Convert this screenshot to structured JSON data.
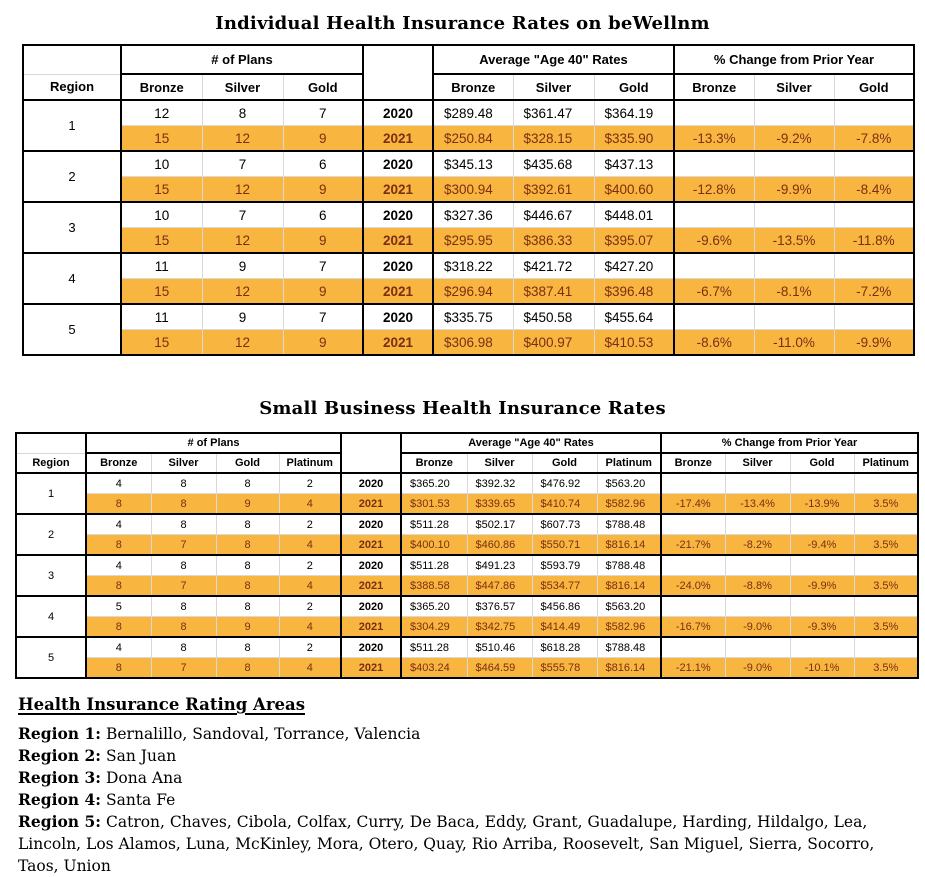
{
  "colors": {
    "highlight_bg": "#F8B640",
    "highlight_text": "#7A2E12"
  },
  "tables": [
    {
      "id": "individual-rates-table",
      "title": "Individual Health Insurance Rates on beWellnm",
      "region_header": "Region",
      "group_headers": [
        "# of Plans",
        "Average \"Age 40\" Rates",
        "% Change from Prior Year"
      ],
      "plan_columns": [
        "Bronze",
        "Silver",
        "Gold"
      ],
      "regions": [
        {
          "region": "1",
          "rows": [
            {
              "year": "2020",
              "plans": [
                "12",
                "8",
                "7"
              ],
              "rates": [
                "$289.48",
                "$361.47",
                "$364.19"
              ],
              "changes": [
                "",
                "",
                ""
              ]
            },
            {
              "year": "2021",
              "plans": [
                "15",
                "12",
                "9"
              ],
              "rates": [
                "$250.84",
                "$328.15",
                "$335.90"
              ],
              "changes": [
                "-13.3%",
                "-9.2%",
                "-7.8%"
              ]
            }
          ]
        },
        {
          "region": "2",
          "rows": [
            {
              "year": "2020",
              "plans": [
                "10",
                "7",
                "6"
              ],
              "rates": [
                "$345.13",
                "$435.68",
                "$437.13"
              ],
              "changes": [
                "",
                "",
                ""
              ]
            },
            {
              "year": "2021",
              "plans": [
                "15",
                "12",
                "9"
              ],
              "rates": [
                "$300.94",
                "$392.61",
                "$400.60"
              ],
              "changes": [
                "-12.8%",
                "-9.9%",
                "-8.4%"
              ]
            }
          ]
        },
        {
          "region": "3",
          "rows": [
            {
              "year": "2020",
              "plans": [
                "10",
                "7",
                "6"
              ],
              "rates": [
                "$327.36",
                "$446.67",
                "$448.01"
              ],
              "changes": [
                "",
                "",
                ""
              ]
            },
            {
              "year": "2021",
              "plans": [
                "15",
                "12",
                "9"
              ],
              "rates": [
                "$295.95",
                "$386.33",
                "$395.07"
              ],
              "changes": [
                "-9.6%",
                "-13.5%",
                "-11.8%"
              ]
            }
          ]
        },
        {
          "region": "4",
          "rows": [
            {
              "year": "2020",
              "plans": [
                "11",
                "9",
                "7"
              ],
              "rates": [
                "$318.22",
                "$421.72",
                "$427.20"
              ],
              "changes": [
                "",
                "",
                ""
              ]
            },
            {
              "year": "2021",
              "plans": [
                "15",
                "12",
                "9"
              ],
              "rates": [
                "$296.94",
                "$387.41",
                "$396.48"
              ],
              "changes": [
                "-6.7%",
                "-8.1%",
                "-7.2%"
              ]
            }
          ]
        },
        {
          "region": "5",
          "rows": [
            {
              "year": "2020",
              "plans": [
                "11",
                "9",
                "7"
              ],
              "rates": [
                "$335.75",
                "$450.58",
                "$455.64"
              ],
              "changes": [
                "",
                "",
                ""
              ]
            },
            {
              "year": "2021",
              "plans": [
                "15",
                "12",
                "9"
              ],
              "rates": [
                "$306.98",
                "$400.97",
                "$410.53"
              ],
              "changes": [
                "-8.6%",
                "-11.0%",
                "-9.9%"
              ]
            }
          ]
        }
      ]
    },
    {
      "id": "small-business-rates-table",
      "title": "Small Business Health Insurance Rates",
      "region_header": "Region",
      "group_headers": [
        "# of Plans",
        "Average \"Age 40\" Rates",
        "% Change from Prior Year"
      ],
      "plan_columns": [
        "Bronze",
        "Silver",
        "Gold",
        "Platinum"
      ],
      "regions": [
        {
          "region": "1",
          "rows": [
            {
              "year": "2020",
              "plans": [
                "4",
                "8",
                "8",
                "2"
              ],
              "rates": [
                "$365.20",
                "$392.32",
                "$476.92",
                "$563.20"
              ],
              "changes": [
                "",
                "",
                "",
                ""
              ]
            },
            {
              "year": "2021",
              "plans": [
                "8",
                "8",
                "9",
                "4"
              ],
              "rates": [
                "$301.53",
                "$339.65",
                "$410.74",
                "$582.96"
              ],
              "changes": [
                "-17.4%",
                "-13.4%",
                "-13.9%",
                "3.5%"
              ]
            }
          ]
        },
        {
          "region": "2",
          "rows": [
            {
              "year": "2020",
              "plans": [
                "4",
                "8",
                "8",
                "2"
              ],
              "rates": [
                "$511.28",
                "$502.17",
                "$607.73",
                "$788.48"
              ],
              "changes": [
                "",
                "",
                "",
                ""
              ]
            },
            {
              "year": "2021",
              "plans": [
                "8",
                "7",
                "8",
                "4"
              ],
              "rates": [
                "$400.10",
                "$460.86",
                "$550.71",
                "$816.14"
              ],
              "changes": [
                "-21.7%",
                "-8.2%",
                "-9.4%",
                "3.5%"
              ]
            }
          ]
        },
        {
          "region": "3",
          "rows": [
            {
              "year": "2020",
              "plans": [
                "4",
                "8",
                "8",
                "2"
              ],
              "rates": [
                "$511.28",
                "$491.23",
                "$593.79",
                "$788.48"
              ],
              "changes": [
                "",
                "",
                "",
                ""
              ]
            },
            {
              "year": "2021",
              "plans": [
                "8",
                "7",
                "8",
                "4"
              ],
              "rates": [
                "$388.58",
                "$447.86",
                "$534.77",
                "$816.14"
              ],
              "changes": [
                "-24.0%",
                "-8.8%",
                "-9.9%",
                "3.5%"
              ]
            }
          ]
        },
        {
          "region": "4",
          "rows": [
            {
              "year": "2020",
              "plans": [
                "5",
                "8",
                "8",
                "2"
              ],
              "rates": [
                "$365.20",
                "$376.57",
                "$456.86",
                "$563.20"
              ],
              "changes": [
                "",
                "",
                "",
                ""
              ]
            },
            {
              "year": "2021",
              "plans": [
                "8",
                "8",
                "9",
                "4"
              ],
              "rates": [
                "$304.29",
                "$342.75",
                "$414.49",
                "$582.96"
              ],
              "changes": [
                "-16.7%",
                "-9.0%",
                "-9.3%",
                "3.5%"
              ]
            }
          ]
        },
        {
          "region": "5",
          "rows": [
            {
              "year": "2020",
              "plans": [
                "4",
                "8",
                "8",
                "2"
              ],
              "rates": [
                "$511.28",
                "$510.46",
                "$618.28",
                "$788.48"
              ],
              "changes": [
                "",
                "",
                "",
                ""
              ]
            },
            {
              "year": "2021",
              "plans": [
                "8",
                "7",
                "8",
                "4"
              ],
              "rates": [
                "$403.24",
                "$464.59",
                "$555.78",
                "$816.14"
              ],
              "changes": [
                "-21.1%",
                "-9.0%",
                "-10.1%",
                "3.5%"
              ]
            }
          ]
        }
      ]
    }
  ],
  "rating_areas": {
    "heading": "Health Insurance Rating Areas",
    "entries": [
      {
        "label": "Region 1:",
        "text": "Bernalillo, Sandoval, Torrance, Valencia"
      },
      {
        "label": "Region 2:",
        "text": "San Juan"
      },
      {
        "label": "Region 3:",
        "text": "Dona Ana"
      },
      {
        "label": "Region 4:",
        "text": "Santa Fe"
      },
      {
        "label": "Region 5:",
        "text": "Catron, Chaves, Cibola, Colfax, Curry, De Baca, Eddy, Grant, Guadalupe, Harding, Hildalgo, Lea, Lincoln, Los Alamos, Luna, McKinley, Mora, Otero, Quay, Rio Arriba, Roosevelt, San Miguel, Sierra, Socorro, Taos, Union"
      }
    ]
  }
}
